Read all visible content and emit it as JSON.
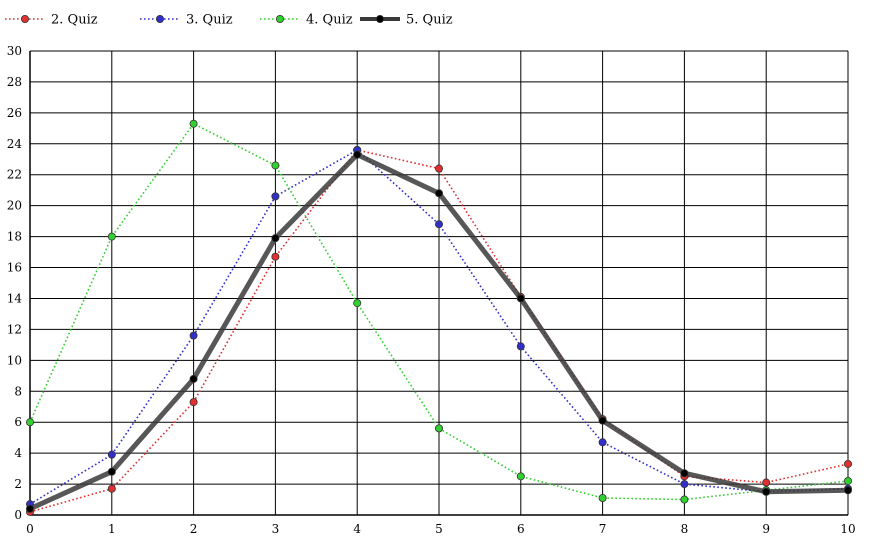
{
  "chart_data": {
    "type": "line",
    "x": [
      0,
      1,
      2,
      3,
      4,
      5,
      6,
      7,
      8,
      9,
      10
    ],
    "xlim": [
      0,
      10
    ],
    "ylim": [
      0,
      30
    ],
    "x_ticks": [
      0,
      1,
      2,
      3,
      4,
      5,
      6,
      7,
      8,
      9,
      10
    ],
    "y_ticks": [
      0,
      2,
      4,
      6,
      8,
      10,
      12,
      14,
      16,
      18,
      20,
      22,
      24,
      26,
      28,
      30
    ],
    "grid": true,
    "legend_position": "top-left",
    "series": [
      {
        "name": "2. Quiz",
        "color": "#e03030",
        "style": "dotted",
        "values": [
          0.2,
          1.7,
          7.3,
          16.7,
          23.6,
          22.4,
          14.1,
          6.2,
          2.5,
          2.1,
          3.3
        ]
      },
      {
        "name": "3. Quiz",
        "color": "#3030c8",
        "style": "dotted",
        "values": [
          0.7,
          3.9,
          11.6,
          20.6,
          23.6,
          18.8,
          10.9,
          4.7,
          2.0,
          1.5,
          1.7
        ]
      },
      {
        "name": "4. Quiz",
        "color": "#30d030",
        "style": "dotted",
        "values": [
          6.0,
          18.0,
          25.3,
          22.6,
          13.7,
          5.6,
          2.5,
          1.1,
          1.0,
          1.6,
          2.2
        ]
      },
      {
        "name": "5. Quiz",
        "color": "#000000",
        "style": "thick",
        "values": [
          0.4,
          2.8,
          8.8,
          17.9,
          23.3,
          20.8,
          14.0,
          6.1,
          2.7,
          1.5,
          1.6
        ]
      }
    ]
  }
}
